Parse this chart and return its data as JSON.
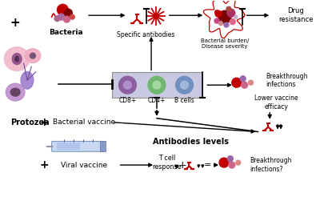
{
  "bg_color": "#ffffff",
  "figsize": [
    4.0,
    2.46
  ],
  "dpi": 100,
  "labels": {
    "bacteria": "Bacteria",
    "specific_antibodies": "Specific antibodies",
    "bacterial_burden": "Bacterial burden/\nDisease severity",
    "drug_resistance": "Drug\nresistance",
    "cd8": "CD8+",
    "cd4": "CD4+",
    "b_cells": "B cells",
    "breakthrough": "Breakthrough\ninfections",
    "lower_vaccine": "Lower vaccine\nefficacy",
    "protozoa": "Protozoa",
    "bacterial_vaccine": "Bacterial vaccine",
    "antibodies_levels": "Antibodies levels",
    "viral_vaccine": "Viral vaccine",
    "t_cell": "T cell\nresponse",
    "breakthrough2": "Breakthrough\ninfections?"
  },
  "colors": {
    "red": "#c00000",
    "dark_red": "#7b0000",
    "purple_cell": "#8b5fa0",
    "green_cell": "#70b870",
    "green_inner": "#a0d8a0",
    "blue_cell": "#7090c0",
    "pink_cell": "#e8a0b8",
    "purple_proto": "#8855aa",
    "box_bg": "#c8c8e0",
    "box_border": "#909090",
    "black": "#000000",
    "syringe_blue": "#7090c8",
    "syringe_dark": "#405080"
  }
}
